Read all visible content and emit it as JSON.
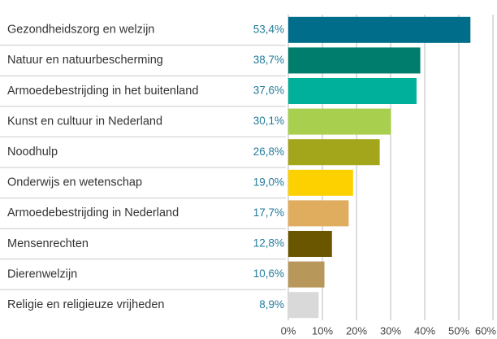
{
  "chart_data": {
    "type": "bar",
    "orientation": "horizontal",
    "categories": [
      "Gezondheidszorg en welzijn",
      "Natuur en natuurbescherming",
      "Armoedebestrijding in het buitenland",
      "Kunst en cultuur in Nederland",
      "Noodhulp",
      "Onderwijs en wetenschap",
      "Armoedebestrijding in Nederland",
      "Mensenrechten",
      "Dierenwelzijn",
      "Religie en religieuze vrijheden"
    ],
    "values": [
      53.4,
      38.7,
      37.6,
      30.1,
      26.8,
      19.0,
      17.7,
      12.8,
      10.6,
      8.9
    ],
    "value_labels": [
      "53,4%",
      "38,7%",
      "37,6%",
      "30,1%",
      "26,8%",
      "19,0%",
      "17,7%",
      "12,8%",
      "10,6%",
      "8,9%"
    ],
    "colors": [
      "#006e8a",
      "#007d6c",
      "#00b09b",
      "#a8cf4e",
      "#a3a51a",
      "#fdd000",
      "#e0ac5e",
      "#6b5600",
      "#b8975a",
      "#d9d9d9"
    ],
    "xlim": [
      0,
      60
    ],
    "xticks": [
      {
        "value": 0,
        "label": "0%"
      },
      {
        "value": 10,
        "label": "10%"
      },
      {
        "value": 20,
        "label": "20%"
      },
      {
        "value": 30,
        "label": "30%"
      },
      {
        "value": 40,
        "label": "40%"
      },
      {
        "value": 50,
        "label": "50%"
      },
      {
        "value": 60,
        "label": "60%"
      }
    ],
    "grid": true
  }
}
